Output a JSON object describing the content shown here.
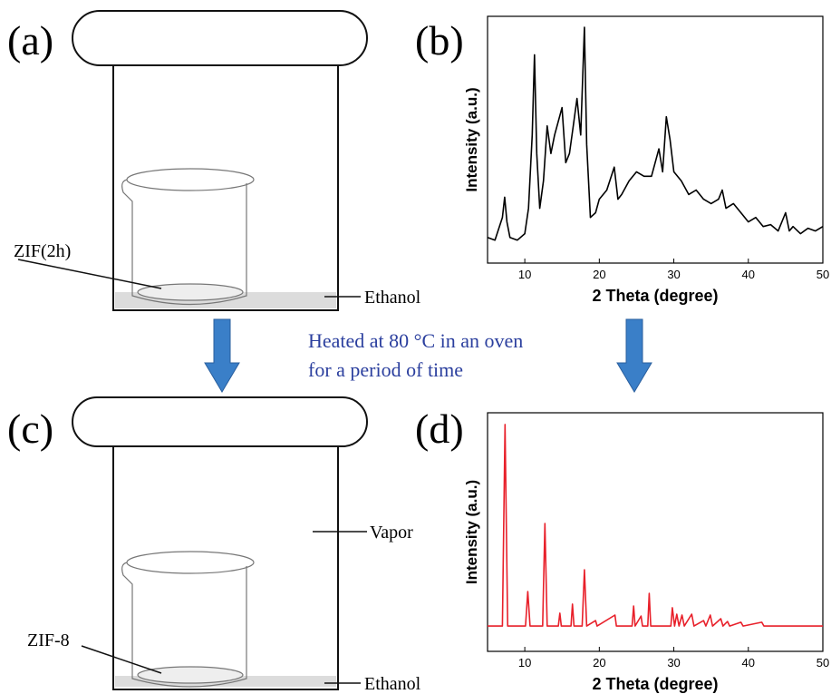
{
  "panels": [
    "(a)",
    "(b)",
    "(c)",
    "(d)"
  ],
  "annotations": {
    "zif_2h": "ZIF(2h)",
    "ethanol_top": "Ethanol",
    "heated_line1": "Heated at 80 °C in an oven",
    "heated_line2": "for  a period of time",
    "zif_8": "ZIF-8",
    "vapor": "Vapor",
    "ethanol_bottom": "Ethanol"
  },
  "chart_data": [
    {
      "type": "line",
      "xlabel": "2 Theta (degree)",
      "ylabel": "Intensity (a.u.)",
      "color": "#000000",
      "xlim": [
        5,
        50
      ],
      "ylim": [
        0,
        100
      ],
      "xticks": [
        10,
        20,
        30,
        40,
        50
      ],
      "x": [
        5,
        6,
        7,
        7.3,
        7.6,
        8,
        9,
        10,
        10.5,
        11,
        11.3,
        11.6,
        12,
        12.5,
        13,
        13.5,
        14,
        15,
        15.5,
        16,
        16.5,
        17,
        17.5,
        18,
        18.3,
        18.8,
        19.5,
        20,
        21,
        22,
        22.5,
        23,
        24,
        25,
        26,
        27,
        28,
        28.5,
        29,
        29.5,
        30,
        31,
        32,
        33,
        34,
        35,
        36,
        36.5,
        37,
        38,
        39,
        40,
        41,
        42,
        43,
        44,
        45,
        45.5,
        46,
        47,
        48,
        49,
        50
      ],
      "values": [
        10.4,
        9.3,
        18.5,
        26.7,
        16.7,
        10.4,
        9.3,
        11.9,
        22.2,
        51.9,
        84.4,
        44.4,
        22.2,
        33.3,
        55.6,
        44.4,
        51.9,
        63,
        40.7,
        44.4,
        55.6,
        66.7,
        51.9,
        95.6,
        48.1,
        18.5,
        20.4,
        25.9,
        29.6,
        38.9,
        25.9,
        27.8,
        33.3,
        37,
        35.2,
        35.2,
        46.3,
        37,
        59.3,
        50,
        37,
        33.3,
        27.8,
        29.6,
        25.9,
        24.1,
        25.9,
        29.6,
        22.2,
        24.1,
        20.4,
        16.7,
        18.5,
        14.8,
        15.6,
        13,
        20.4,
        13,
        14.8,
        11.9,
        14.1,
        13,
        14.8
      ]
    },
    {
      "type": "line",
      "xlabel": "2 Theta (degree)",
      "ylabel": "Intensity (a.u.)",
      "color": "#e8202a",
      "xlim": [
        5,
        50
      ],
      "ylim": [
        0,
        100
      ],
      "xticks": [
        10,
        20,
        30,
        40,
        50
      ],
      "x": [
        5,
        7,
        7.35,
        7.7,
        10.1,
        10.4,
        10.7,
        12.4,
        12.7,
        13,
        14.5,
        14.7,
        14.9,
        16.2,
        16.4,
        16.6,
        17.7,
        18,
        18.3,
        19.5,
        19.7,
        22.1,
        22.3,
        24.4,
        24.6,
        24.8,
        25.6,
        25.8,
        26.5,
        26.7,
        26.9,
        29.6,
        29.8,
        30.1,
        30.4,
        30.7,
        31.1,
        31.4,
        32.4,
        32.7,
        34,
        34.3,
        34.9,
        35.2,
        36.3,
        36.6,
        37.2,
        37.5,
        39,
        39.3,
        41.8,
        42.1,
        50
      ],
      "values": [
        10.6,
        10.6,
        95.1,
        10.6,
        10.6,
        25.1,
        10.6,
        10.6,
        53.6,
        10.6,
        10.6,
        16,
        10.6,
        10.6,
        19.8,
        10.6,
        10.6,
        34.2,
        10.6,
        12.9,
        10.6,
        15.2,
        10.6,
        10.6,
        19,
        10.6,
        14.8,
        10.6,
        10.6,
        24.3,
        10.6,
        10.6,
        18.3,
        10.6,
        15.6,
        10.6,
        15.2,
        10.6,
        15.6,
        10.6,
        12.9,
        10.6,
        15.2,
        10.6,
        13.7,
        10.6,
        12.5,
        10.6,
        12.2,
        10.6,
        12.2,
        10.6,
        10.6
      ]
    }
  ]
}
